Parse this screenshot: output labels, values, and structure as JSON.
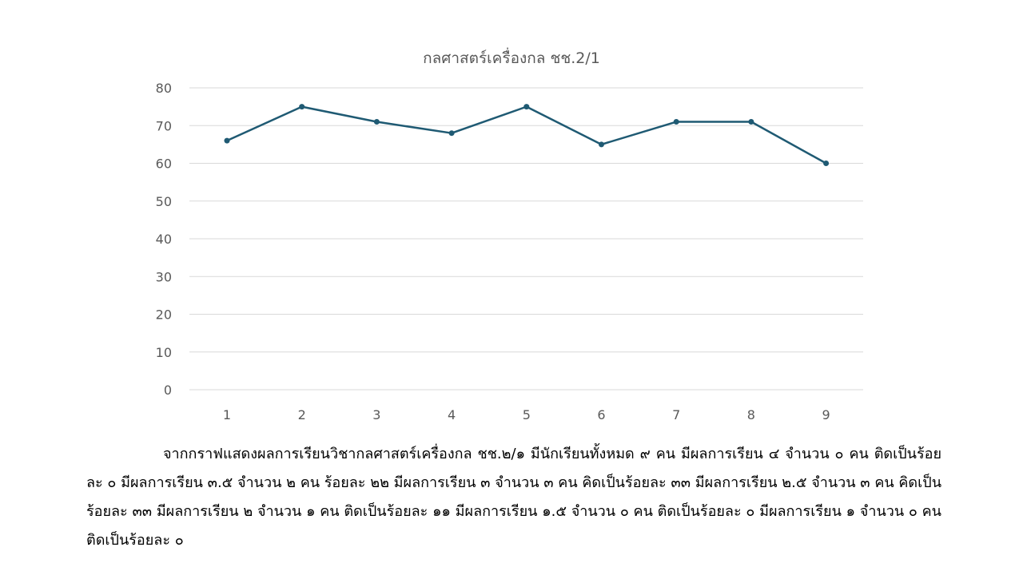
{
  "chart_data": {
    "type": "line",
    "title": "กลศาสตร์เครื่องกล ชช.2/1",
    "xlabel": "",
    "ylabel": "",
    "categories": [
      "1",
      "2",
      "3",
      "4",
      "5",
      "6",
      "7",
      "8",
      "9"
    ],
    "series": [
      {
        "values": [
          66,
          75,
          71,
          68,
          75,
          65,
          71,
          71,
          60
        ]
      }
    ],
    "ylim": [
      0,
      80
    ],
    "yticks": [
      0,
      10,
      20,
      30,
      40,
      50,
      60,
      70,
      80
    ],
    "grid": true,
    "legend": "none",
    "colors": {
      "line": "#1f5a73",
      "grid": "#d9d9d9",
      "tick_text": "#595959"
    }
  },
  "summary": {
    "text": "จากกราฟแสดงผลการเรียนวิชากลศาสตร์เครื่องกล ชช.๒/๑ มีนักเรียนทั้งหมด ๙ คน มีผลการเรียน ๔ จำนวน ๐ คน ติดเป็นร้อยละ ๐  มีผลการเรียน ๓.๕ จำนวน ๒ คน ร้อยละ ๒๒  มีผลการเรียน ๓ จำนวน ๓ คน คิดเป็นร้อยละ ๓๓  มีผลการเรียน ๒.๕ จำนวน ๓ คน คิดเป็นร้อยละ ๓๓ มีผลการเรียน ๒ จำนวน ๑ คน ติดเป็นร้อยละ ๑๑ มีผลการเรียน ๑.๕ จำนวน ๐ คน ติดเป็นร้อยละ ๐ มีผลการเรียน ๑ จำนวน ๐ คน ติดเป็นร้อยละ ๐"
  }
}
